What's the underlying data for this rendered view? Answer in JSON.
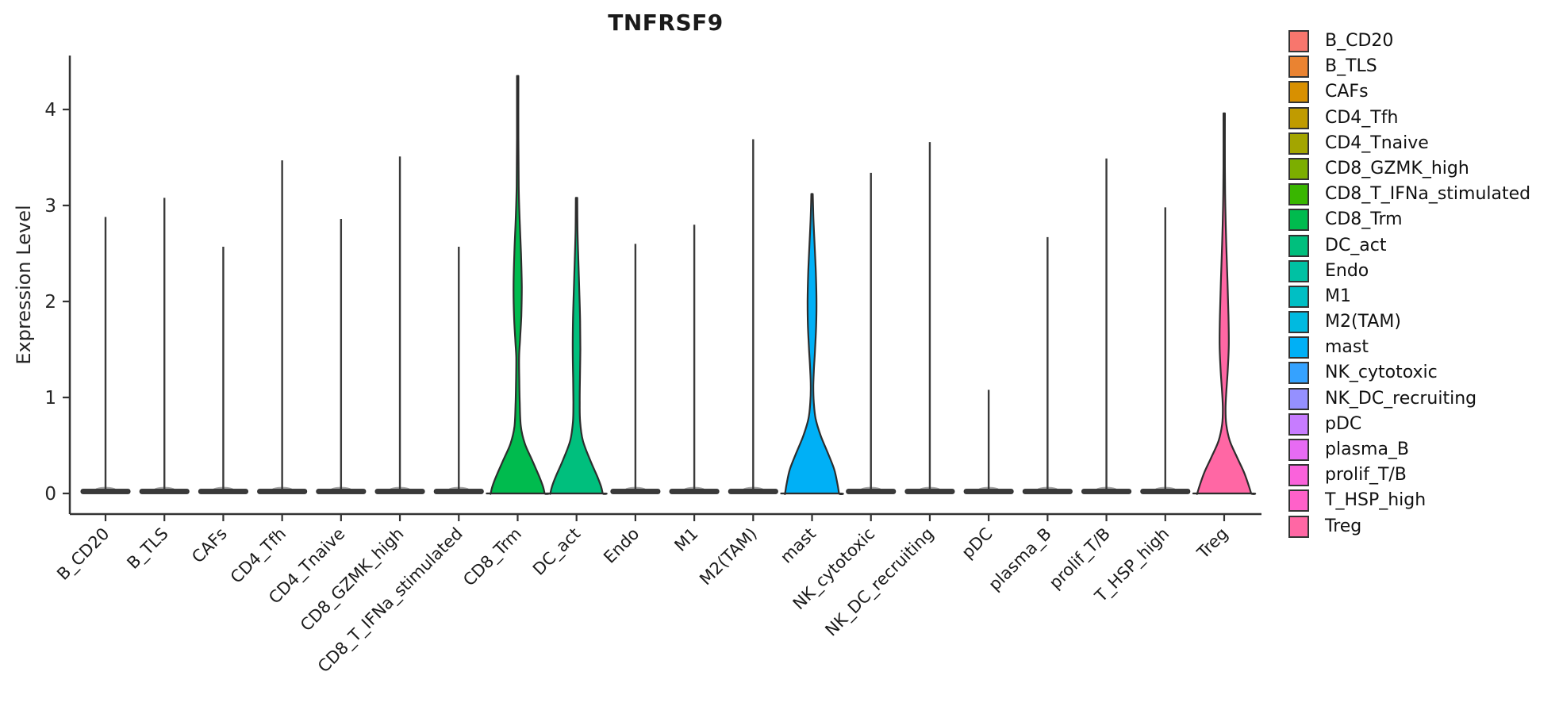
{
  "chart_data": {
    "type": "violin",
    "title": "TNFRSF9",
    "ylabel": "Expression Level",
    "xlabel": "",
    "ylim": [
      0,
      4.56
    ],
    "yticks": [
      "0",
      "1",
      "2",
      "3",
      "4"
    ],
    "grid": "off",
    "legend_position": "right",
    "axis_color": "#333333",
    "outline_color": "#2d2d2d",
    "categories": [
      {
        "name": "B_CD20",
        "color": "#F8766D",
        "max": 2.88,
        "kind": "line"
      },
      {
        "name": "B_TLS",
        "color": "#EA8331",
        "max": 3.08,
        "kind": "line"
      },
      {
        "name": "CAFs",
        "color": "#D89000",
        "max": 2.57,
        "kind": "line"
      },
      {
        "name": "CD4_Tfh",
        "color": "#C09B00",
        "max": 3.47,
        "kind": "line"
      },
      {
        "name": "CD4_Tnaive",
        "color": "#A3A500",
        "max": 2.86,
        "kind": "line"
      },
      {
        "name": "CD8_GZMK_high",
        "color": "#7CAE00",
        "max": 3.51,
        "kind": "line"
      },
      {
        "name": "CD8_T_IFNa_stimulated",
        "color": "#39B600",
        "max": 2.57,
        "kind": "line"
      },
      {
        "name": "CD8_Trm",
        "color": "#00BB4E",
        "max": 4.35,
        "kind": "violin",
        "profile": [
          [
            4.35,
            0.9
          ],
          [
            3.7,
            0.9
          ],
          [
            3.2,
            1.3
          ],
          [
            2.85,
            2.5
          ],
          [
            2.5,
            4.2
          ],
          [
            2.15,
            5.2
          ],
          [
            1.85,
            4.6
          ],
          [
            1.6,
            3.0
          ],
          [
            1.42,
            1.8
          ],
          [
            1.2,
            2.0
          ],
          [
            0.95,
            2.6
          ],
          [
            0.7,
            4.0
          ],
          [
            0.52,
            9
          ],
          [
            0.35,
            18
          ],
          [
            0.18,
            27
          ],
          [
            0.07,
            32
          ],
          [
            0,
            34
          ]
        ]
      },
      {
        "name": "DC_act",
        "color": "#00BF7D",
        "max": 3.08,
        "kind": "violin",
        "profile": [
          [
            3.08,
            0.9
          ],
          [
            2.75,
            1.2
          ],
          [
            2.45,
            2.2
          ],
          [
            2.1,
            3.5
          ],
          [
            1.8,
            4.5
          ],
          [
            1.5,
            4.8
          ],
          [
            1.2,
            4.3
          ],
          [
            0.95,
            4.0
          ],
          [
            0.75,
            4.5
          ],
          [
            0.55,
            8
          ],
          [
            0.35,
            17
          ],
          [
            0.18,
            26
          ],
          [
            0.07,
            31
          ],
          [
            0,
            33
          ]
        ]
      },
      {
        "name": "Endo",
        "color": "#00C1A3",
        "max": 2.6,
        "kind": "line"
      },
      {
        "name": "M1",
        "color": "#00BFC4",
        "max": 2.8,
        "kind": "line"
      },
      {
        "name": "M2(TAM)",
        "color": "#00BAE0",
        "max": 3.69,
        "kind": "line"
      },
      {
        "name": "mast",
        "color": "#00B0F6",
        "max": 3.12,
        "kind": "violin",
        "profile": [
          [
            3.12,
            0.9
          ],
          [
            2.85,
            1.8
          ],
          [
            2.6,
            3.2
          ],
          [
            2.3,
            4.8
          ],
          [
            2.0,
            5.6
          ],
          [
            1.75,
            5.2
          ],
          [
            1.5,
            3.8
          ],
          [
            1.3,
            2.4
          ],
          [
            1.12,
            1.6
          ],
          [
            0.95,
            2.2
          ],
          [
            0.78,
            4.5
          ],
          [
            0.6,
            11
          ],
          [
            0.42,
            20
          ],
          [
            0.25,
            28
          ],
          [
            0.1,
            32
          ],
          [
            0,
            34
          ]
        ]
      },
      {
        "name": "NK_cytotoxic",
        "color": "#35A2FF",
        "max": 3.34,
        "kind": "line"
      },
      {
        "name": "NK_DC_recruiting",
        "color": "#9590FF",
        "max": 3.66,
        "kind": "line"
      },
      {
        "name": "pDC",
        "color": "#C77CFF",
        "max": 1.08,
        "kind": "line"
      },
      {
        "name": "plasma_B",
        "color": "#E76BF3",
        "max": 2.67,
        "kind": "line"
      },
      {
        "name": "prolif_T/B",
        "color": "#FA62DB",
        "max": 3.49,
        "kind": "line"
      },
      {
        "name": "T_HSP_high",
        "color": "#FF61C9",
        "max": 2.98,
        "kind": "line"
      },
      {
        "name": "Treg",
        "color": "#FF67A4",
        "max": 3.96,
        "kind": "violin",
        "profile": [
          [
            3.96,
            0.9
          ],
          [
            3.4,
            0.9
          ],
          [
            3.0,
            1.4
          ],
          [
            2.6,
            2.6
          ],
          [
            2.2,
            4.2
          ],
          [
            1.85,
            5.4
          ],
          [
            1.55,
            5.8
          ],
          [
            1.3,
            4.6
          ],
          [
            1.05,
            2.6
          ],
          [
            0.88,
            1.7
          ],
          [
            0.72,
            2.6
          ],
          [
            0.55,
            7
          ],
          [
            0.38,
            16
          ],
          [
            0.22,
            25
          ],
          [
            0.08,
            31
          ],
          [
            0,
            34
          ]
        ]
      }
    ]
  }
}
